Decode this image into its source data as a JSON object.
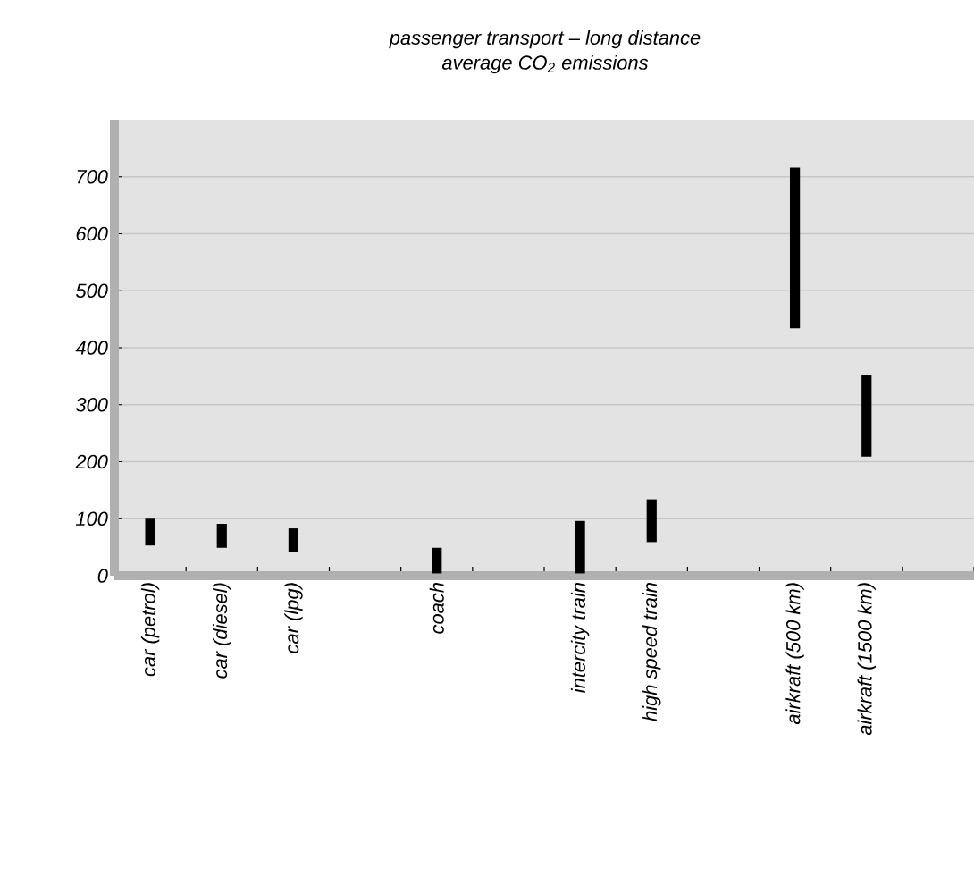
{
  "chart_data": {
    "type": "bar",
    "title": "passenger transport – long distance",
    "subtitle": "average CO$_{2}$ emissions",
    "categories": [
      "car (petrol)",
      "car (diesel)",
      "car (lpg)",
      null,
      "coach",
      null,
      "intercity train",
      "high speed train",
      null,
      "airkraft (500 km)",
      "airkraft (1500 km)",
      null
    ],
    "base": [
      53,
      49,
      41,
      null,
      4,
      null,
      4,
      59,
      null,
      434,
      209,
      null
    ],
    "values": [
      47,
      42,
      42,
      null,
      45,
      null,
      92,
      75,
      null,
      282,
      144,
      null
    ],
    "color": "#000000",
    "ylim": [
      0,
      800
    ],
    "yticks": [
      0,
      100,
      200,
      300,
      400,
      500,
      600,
      700
    ],
    "grid": "y"
  }
}
